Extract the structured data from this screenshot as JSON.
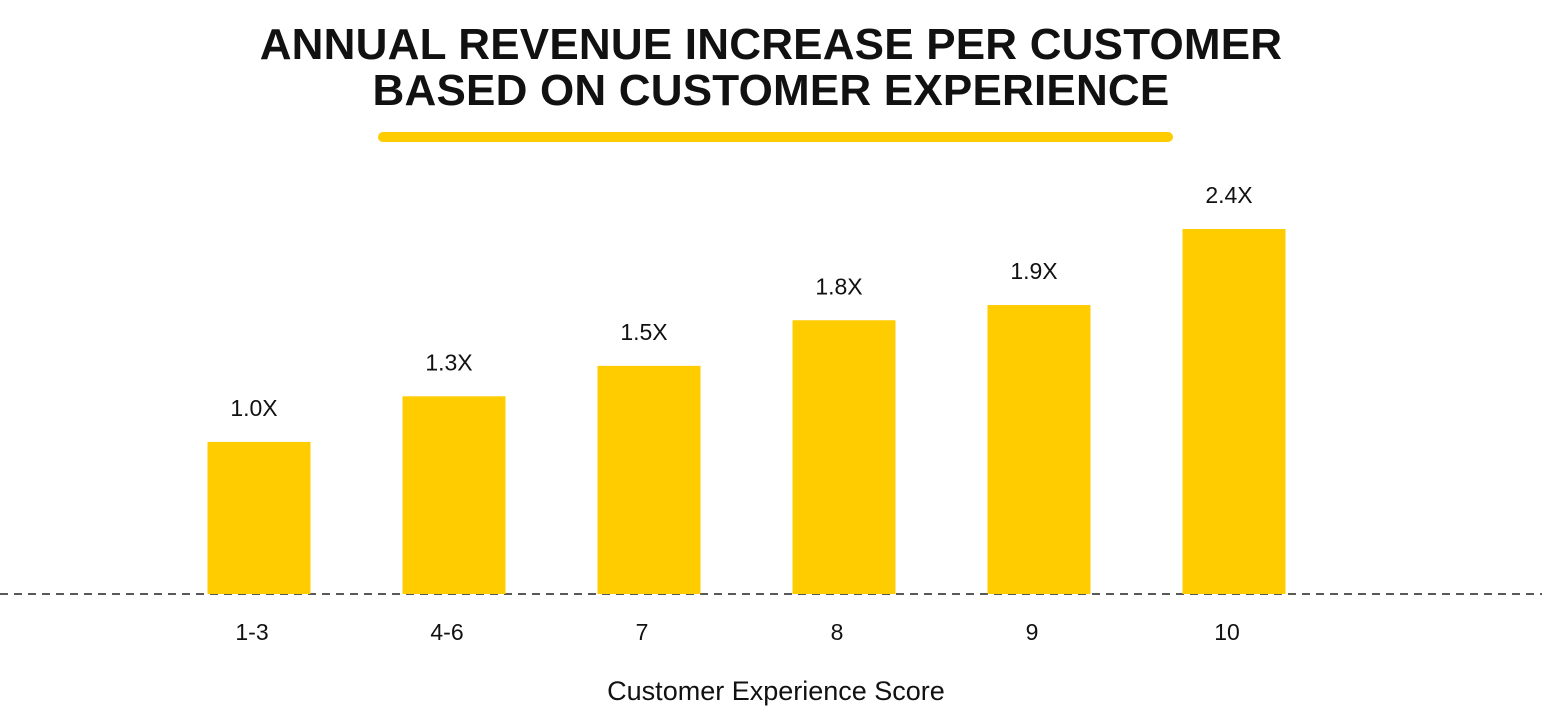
{
  "chart_data": {
    "type": "bar",
    "title_lines": [
      "ANNUAL REVENUE INCREASE PER CUSTOMER",
      "BASED ON CUSTOMER EXPERIENCE"
    ],
    "xlabel": "Customer Experience Score",
    "categories": [
      "1-3",
      "4-6",
      "7",
      "8",
      "9",
      "10"
    ],
    "values": [
      1.0,
      1.3,
      1.5,
      1.8,
      1.9,
      2.4
    ],
    "data_labels": [
      "1.0X",
      "1.3X",
      "1.5X",
      "1.8X",
      "1.9X",
      "2.4X"
    ],
    "ylim": [
      0,
      2.4
    ],
    "grid": false,
    "legend": "none",
    "baseline": "dashed",
    "bar_color": "#FFCC00",
    "accent_color": "#FFCC00",
    "text_color": "#111111"
  }
}
